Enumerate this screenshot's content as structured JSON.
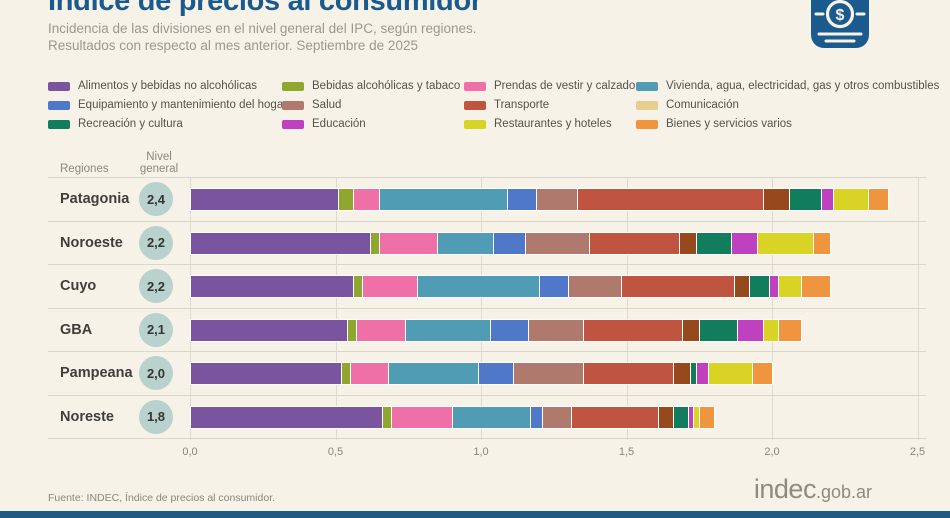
{
  "page": {
    "background": "#F6F2E8",
    "accent_blue": "#1A5A8C"
  },
  "header": {
    "title": "Índice de precios al consumidor",
    "subtitle_line1": "Incidencia de las divisiones en el nivel general del IPC, según regiones.",
    "subtitle_line2": "Resultados con respecto al mes anterior. Septiembre de 2025",
    "badge_symbol": "$"
  },
  "chart_data": {
    "type": "bar",
    "stacked": true,
    "orientation": "horizontal",
    "title": "Índice de precios al consumidor",
    "xlim": [
      0,
      2.5
    ],
    "x_ticks": [
      "0,0",
      "0,5",
      "1,0",
      "1,5",
      "2,0",
      "2,5"
    ],
    "column_headers": {
      "regiones": "Regiones",
      "nivel_general": "Nivel general"
    },
    "divisions": [
      {
        "label": "Alimentos y bebidas no alcohólicas",
        "color": "#7B54A0"
      },
      {
        "label": "Bebidas alcohólicas y tabaco",
        "color": "#8FA62F"
      },
      {
        "label": "Prendas de vestir y calzado",
        "color": "#EF6FA7"
      },
      {
        "label": "Vivienda, agua, electricidad, gas y otros combustibles",
        "color": "#4F9CB4"
      },
      {
        "label": "Equipamiento y mantenimiento del hogar",
        "color": "#5078C8"
      },
      {
        "label": "Salud",
        "color": "#AF7A6D"
      },
      {
        "label": "Transporte",
        "color": "#BF5441"
      },
      {
        "label": "Comunicación",
        "color": "#96491D",
        "legend_color": "#E7CD8F"
      },
      {
        "label": "Recreación y cultura",
        "color": "#127D5D"
      },
      {
        "label": "Educación",
        "color": "#C041C0"
      },
      {
        "label": "Restaurantes y hoteles",
        "color": "#D9D325"
      },
      {
        "label": "Bienes y servicios varios",
        "color": "#F0953F"
      }
    ],
    "legend_grid_order": "row-major, 4 columns, same order as divisions",
    "regions": [
      {
        "name": "Patagonia",
        "nivel_general": "2,4",
        "values": [
          0.51,
          0.05,
          0.09,
          0.44,
          0.1,
          0.14,
          0.64,
          0.09,
          0.11,
          0.04,
          0.12,
          0.07
        ]
      },
      {
        "name": "Noroeste",
        "nivel_general": "2,2",
        "values": [
          0.62,
          0.03,
          0.2,
          0.19,
          0.11,
          0.22,
          0.31,
          0.06,
          0.12,
          0.09,
          0.19,
          0.06
        ]
      },
      {
        "name": "Cuyo",
        "nivel_general": "2,2",
        "values": [
          0.56,
          0.03,
          0.19,
          0.42,
          0.1,
          0.18,
          0.39,
          0.05,
          0.07,
          0.03,
          0.08,
          0.1
        ]
      },
      {
        "name": "GBA",
        "nivel_general": "2,1",
        "values": [
          0.54,
          0.03,
          0.17,
          0.29,
          0.13,
          0.19,
          0.34,
          0.06,
          0.13,
          0.09,
          0.05,
          0.08
        ]
      },
      {
        "name": "Pampeana",
        "nivel_general": "2,0",
        "values": [
          0.52,
          0.03,
          0.13,
          0.31,
          0.12,
          0.24,
          0.31,
          0.06,
          0.02,
          0.04,
          0.15,
          0.07
        ]
      },
      {
        "name": "Noreste",
        "nivel_general": "1,8",
        "values": [
          0.66,
          0.03,
          0.21,
          0.27,
          0.04,
          0.1,
          0.3,
          0.05,
          0.05,
          0.02,
          0.02,
          0.05
        ]
      }
    ]
  },
  "footer": {
    "source": "Fuente: INDEC, Índice de precios al consumidor.",
    "logo_main": "indec",
    "logo_suffix": ".gob.ar"
  }
}
